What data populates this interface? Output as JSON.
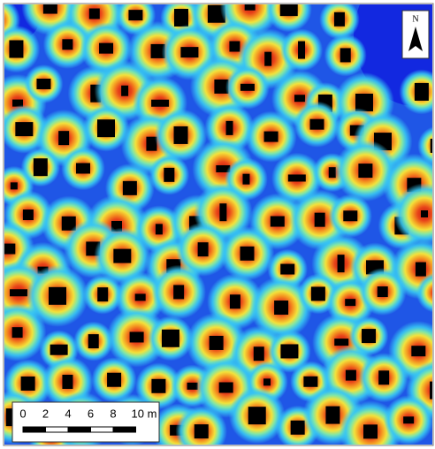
{
  "north_arrow": {
    "label": "N"
  },
  "scale_bar": {
    "labels": [
      "0",
      "2",
      "4",
      "6",
      "8",
      "10 m"
    ]
  }
}
